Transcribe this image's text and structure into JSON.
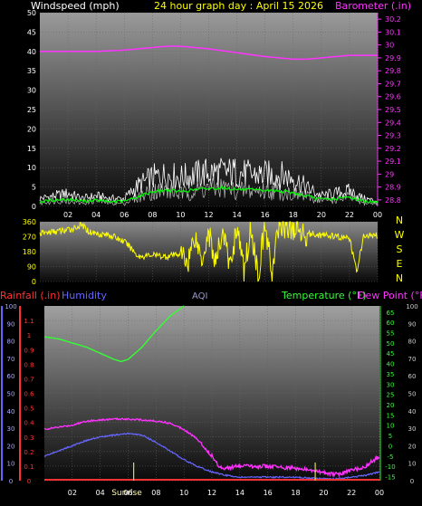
{
  "header": {
    "windspeed_label": "Windspeed (mph)",
    "title": "24 hour graph day : April 15 2026",
    "barometer_label": "Barometer (.in)"
  },
  "bottom_header": {
    "rainfall_label": "Rainfall (.in)",
    "humidity_label": "Humidity",
    "aqi_label": "AQI",
    "temperature_label": "Temperature (°F)",
    "dewpoint_label": "Dew Point (°F)"
  },
  "compass_letters": [
    "N",
    "W",
    "S",
    "E",
    "N"
  ],
  "x_ticks": [
    "02",
    "04",
    "06",
    "08",
    "10",
    "12",
    "14",
    "16",
    "18",
    "20",
    "22",
    "00"
  ],
  "sunrise_label": "Sunrise",
  "colors": {
    "windspeed": "#ffffff",
    "wind_avg": "#00ff00",
    "barometer": "#ff33ff",
    "direction": "#ffff00",
    "rainfall": "#ff3333",
    "humidity": "#6666ff",
    "temperature": "#33ff33",
    "dewpoint": "#ff33ff",
    "title": "#ffff00"
  },
  "chart_data": [
    {
      "type": "line",
      "name": "wind-barometer",
      "x_range": [
        0,
        24
      ],
      "wind_ylim": [
        0,
        50
      ],
      "wind_ticks": [
        0,
        5,
        10,
        15,
        20,
        25,
        30,
        35,
        40,
        45,
        50
      ],
      "baro_ylim": [
        28.75,
        30.25
      ],
      "baro_ticks": [
        "28.8",
        "28.9",
        "29",
        "29.1",
        "29.2",
        "29.3",
        "29.4",
        "29.5",
        "29.6",
        "29.7",
        "29.8",
        "29.9",
        "30",
        "30.1",
        "30.2"
      ],
      "series": [
        {
          "key": "gust",
          "x": [
            0,
            1,
            2,
            3,
            4,
            5,
            6,
            7,
            8,
            9,
            10,
            11,
            12,
            13,
            14,
            15,
            16,
            17,
            18,
            19,
            20,
            21,
            22,
            23,
            24
          ],
          "values": [
            3,
            4,
            5,
            3,
            4,
            3,
            3,
            8,
            11,
            12,
            11,
            12,
            13,
            13,
            13,
            12,
            12,
            12,
            11,
            7,
            4,
            5,
            6,
            3,
            2
          ]
        },
        {
          "key": "speed",
          "x": [
            0,
            1,
            2,
            3,
            4,
            5,
            6,
            7,
            8,
            9,
            10,
            11,
            12,
            13,
            14,
            15,
            16,
            17,
            18,
            19,
            20,
            21,
            22,
            23,
            24
          ],
          "values": [
            1,
            2,
            2,
            1,
            2,
            1,
            1,
            3,
            5,
            5,
            4,
            5,
            6,
            6,
            5,
            5,
            5,
            5,
            4,
            3,
            2,
            2,
            3,
            1,
            1
          ]
        },
        {
          "key": "avg",
          "x": [
            0,
            1,
            2,
            3,
            4,
            5,
            6,
            7,
            8,
            9,
            10,
            11,
            12,
            13,
            14,
            15,
            16,
            17,
            18,
            19,
            20,
            21,
            22,
            23,
            24
          ],
          "values": [
            1.2,
            1.6,
            1.8,
            1.4,
            1.5,
            1.2,
            1.3,
            2.5,
            3.8,
            4.2,
            3.8,
            4.3,
            4.6,
            4.8,
            4.4,
            4.2,
            4.1,
            4.0,
            3.5,
            2.6,
            1.8,
            1.9,
            2.4,
            1.4,
            1.0
          ]
        },
        {
          "key": "barometer",
          "x": [
            0,
            2,
            4,
            6,
            8,
            9,
            10,
            11,
            12,
            14,
            16,
            18,
            19,
            20,
            21,
            22,
            23,
            24
          ],
          "values": [
            29.95,
            29.95,
            29.95,
            29.96,
            29.98,
            29.99,
            29.99,
            29.98,
            29.97,
            29.94,
            29.91,
            29.89,
            29.89,
            29.9,
            29.91,
            29.92,
            29.92,
            29.92
          ]
        }
      ]
    },
    {
      "type": "line",
      "name": "wind-direction",
      "x_range": [
        0,
        24
      ],
      "ylim": [
        0,
        360
      ],
      "y_ticks": [
        0,
        90,
        180,
        270,
        360
      ],
      "series": [
        {
          "key": "direction",
          "x": [
            0,
            1,
            2,
            3,
            3.5,
            4,
            5,
            6,
            6.5,
            7,
            8,
            9,
            10,
            10.5,
            11,
            11.5,
            12,
            12.5,
            13,
            13.5,
            14,
            14.5,
            15,
            15.5,
            16,
            16.5,
            17,
            17.5,
            18,
            18.5,
            19,
            20,
            21,
            22,
            22.5,
            23,
            24
          ],
          "values": [
            290,
            300,
            310,
            340,
            300,
            290,
            280,
            240,
            200,
            150,
            160,
            150,
            170,
            120,
            280,
            140,
            300,
            100,
            320,
            80,
            340,
            60,
            330,
            40,
            340,
            50,
            350,
            330,
            320,
            300,
            290,
            280,
            270,
            260,
            60,
            270,
            280
          ]
        }
      ]
    },
    {
      "type": "line",
      "name": "temp-humidity",
      "x_range": [
        0,
        24
      ],
      "rain_ylim": [
        0,
        1.2
      ],
      "rain_ticks": [
        "0",
        "0.1",
        "0.2",
        "0.3",
        "0.4",
        "0.5",
        "0.6",
        "0.7",
        "0.8",
        "0.9",
        "1",
        "1.1"
      ],
      "humidity_ylim": [
        0,
        100
      ],
      "humidity_ticks": [
        0,
        10,
        20,
        30,
        40,
        50,
        60,
        70,
        80,
        90,
        100
      ],
      "temp_ylim": [
        -17,
        68
      ],
      "temp_ticks": [
        -15,
        -10,
        -5,
        0,
        5,
        10,
        15,
        20,
        25,
        30,
        35,
        40,
        45,
        50,
        55,
        60,
        65
      ],
      "dew_ticks": [
        0,
        10,
        20,
        30,
        40,
        50,
        60,
        70,
        80,
        90,
        100
      ],
      "series": [
        {
          "key": "temperature",
          "x": [
            0,
            1,
            2,
            3,
            4,
            5,
            5.5,
            6,
            7,
            8,
            9,
            10
          ],
          "values": [
            53,
            52,
            50,
            48,
            45,
            42,
            41,
            42,
            48,
            56,
            63,
            68
          ]
        },
        {
          "key": "dewpoint",
          "x": [
            0,
            1,
            2,
            3,
            4,
            5,
            6,
            7,
            8,
            9,
            10,
            11,
            12,
            12.5,
            13,
            14,
            16,
            18,
            20,
            21,
            22,
            22.5,
            23,
            24
          ],
          "values": [
            8,
            9,
            10,
            12,
            12.5,
            13,
            13,
            12.5,
            12,
            11,
            8,
            3,
            -5,
            -10,
            -11,
            -10,
            -10,
            -11,
            -13,
            -14,
            -12,
            -11,
            -10,
            -5
          ]
        },
        {
          "key": "humidity",
          "x": [
            0,
            1,
            2,
            3,
            4,
            5,
            6,
            7,
            8,
            9,
            10,
            11,
            12,
            13,
            14,
            16,
            18,
            20,
            21,
            22,
            23,
            24
          ],
          "values": [
            14,
            17,
            20,
            23,
            25,
            26,
            27,
            26,
            22,
            17,
            12,
            8,
            5,
            3,
            2,
            2,
            2,
            1,
            1,
            2,
            3,
            5
          ]
        },
        {
          "key": "rainfall",
          "x": [
            0,
            24
          ],
          "values": [
            0,
            0
          ]
        }
      ]
    }
  ]
}
